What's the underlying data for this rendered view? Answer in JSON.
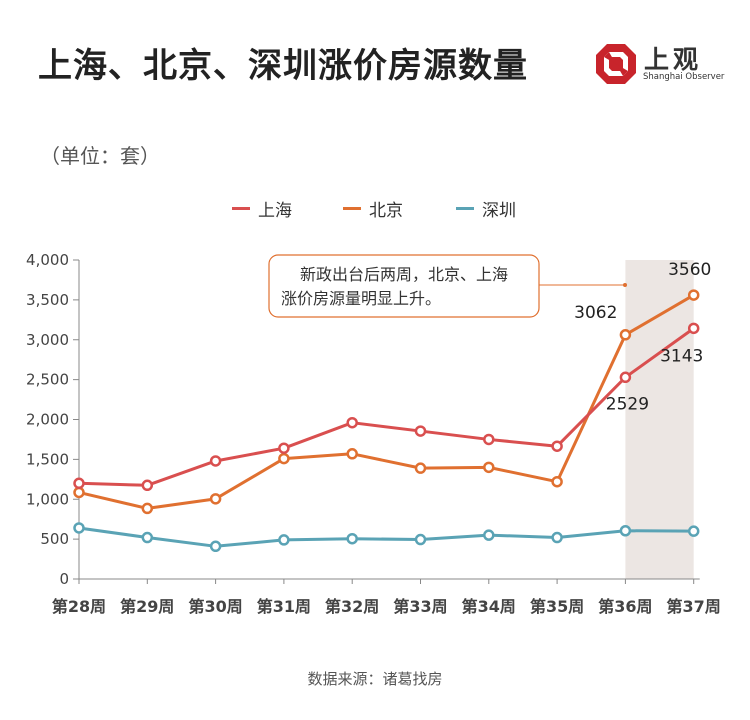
{
  "header": {
    "title": "上海、北京、深圳涨价房源数量",
    "logo_cn": "上观",
    "logo_en": "Shanghai Observer"
  },
  "unit_label": "（单位：套）",
  "source": "数据来源：诸葛找房",
  "annotation": {
    "line1": "新政出台后两周，北京、上海",
    "line2": "涨价房源量明显上升。"
  },
  "colors": {
    "shanghai": "#d94f4f",
    "beijing": "#e07030",
    "shenzhen": "#5aa3b5",
    "highlight": "#ece6e3",
    "annotation_border": "#e07030"
  },
  "chart_data": {
    "type": "line",
    "categories": [
      "第28周",
      "第29周",
      "第30周",
      "第31周",
      "第32周",
      "第33周",
      "第34周",
      "第35周",
      "第36周",
      "第37周"
    ],
    "series": [
      {
        "name": "上海",
        "values": [
          1200,
          1175,
          1480,
          1640,
          1960,
          1855,
          1750,
          1665,
          2529,
          3143
        ]
      },
      {
        "name": "北京",
        "values": [
          1085,
          885,
          1005,
          1510,
          1570,
          1390,
          1400,
          1220,
          3062,
          3560
        ]
      },
      {
        "name": "深圳",
        "values": [
          640,
          520,
          410,
          490,
          505,
          495,
          550,
          520,
          605,
          600
        ]
      }
    ],
    "ylim": [
      0,
      4000
    ],
    "yticks": [
      "0",
      "500",
      "1,000",
      "1,500",
      "2,000",
      "2,500",
      "3,000",
      "3,500",
      "4,000"
    ],
    "data_labels": [
      {
        "series": "北京",
        "index": 8,
        "text": "3062"
      },
      {
        "series": "北京",
        "index": 9,
        "text": "3560"
      },
      {
        "series": "上海",
        "index": 8,
        "text": "2529"
      },
      {
        "series": "上海",
        "index": 9,
        "text": "3143"
      }
    ],
    "highlight_categories": [
      "第36周",
      "第37周"
    ],
    "legend": "top-center"
  }
}
